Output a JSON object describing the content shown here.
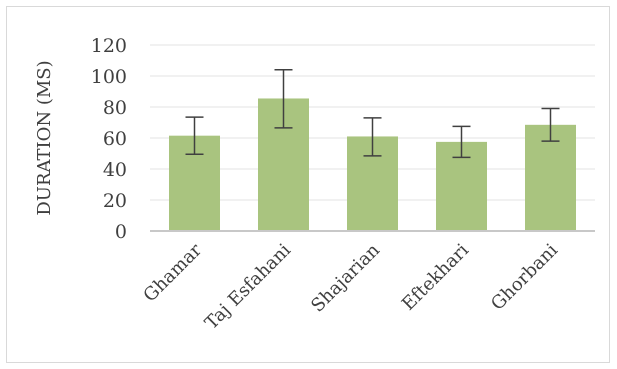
{
  "chart_data": {
    "type": "bar",
    "title": "",
    "xlabel": "",
    "ylabel": "DURATION (MS)",
    "ylim": [
      0,
      120
    ],
    "yticks": [
      0,
      20,
      40,
      60,
      80,
      100,
      120
    ],
    "grid": true,
    "legend": "none",
    "categories": [
      "Ghamar",
      "Taj Esfahani",
      "Shajarian",
      "Eftekhari",
      "Ghorbani"
    ],
    "values": [
      61.5,
      85.5,
      61,
      57.5,
      68.5
    ],
    "error_low": [
      49.5,
      66.5,
      48.5,
      47.5,
      58
    ],
    "error_high": [
      73.5,
      104,
      73,
      67.5,
      79
    ],
    "bar_color": "#a9c47f",
    "error_color": "#404040"
  }
}
